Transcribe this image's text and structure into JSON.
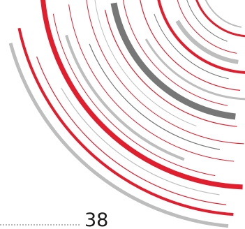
{
  "page": {
    "number": "38"
  },
  "colors": {
    "red": "#e01e2e",
    "dark_gray": "#777777",
    "light_gray": "#bdbdbd",
    "rule_gray": "#b5b5b5",
    "text": "#1a1a1a"
  }
}
